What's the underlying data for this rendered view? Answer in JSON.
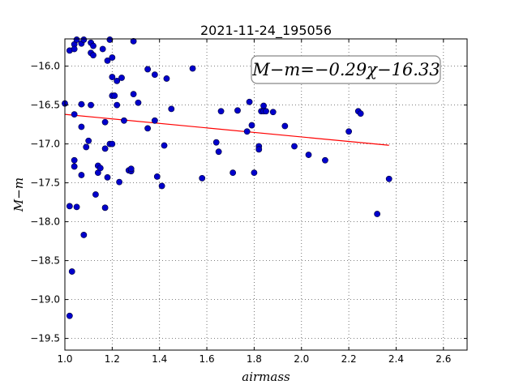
{
  "chart_data": {
    "type": "scatter",
    "title": "2021-11-24_195056",
    "xlabel": "airmass",
    "ylabel": "M−m",
    "annotation": "M−m=−0.29χ−16.33",
    "xlim": [
      1.0,
      2.7
    ],
    "ylim": [
      -19.65,
      -15.65
    ],
    "y_inverted": true,
    "grid": true,
    "x_ticks": [
      1.0,
      1.2,
      1.4,
      1.6,
      1.8,
      2.0,
      2.2,
      2.4,
      2.6
    ],
    "x_tick_labels": [
      "1.0",
      "1.2",
      "1.4",
      "1.6",
      "1.8",
      "2.0",
      "2.2",
      "2.4",
      "2.6"
    ],
    "y_ticks": [
      -16.0,
      -16.5,
      -17.0,
      -17.5,
      -18.0,
      -18.5,
      -19.0,
      -19.5
    ],
    "y_tick_labels": [
      "−16.0",
      "−16.5",
      "−17.0",
      "−17.5",
      "−18.0",
      "−18.5",
      "−19.0",
      "−19.5"
    ],
    "colors": {
      "points": "#0000cc",
      "fit": "#ff0000",
      "grid": "#555555"
    },
    "fit_line": {
      "slope": -0.29,
      "intercept": -16.33,
      "x_range": [
        1.0,
        2.37
      ]
    },
    "points": [
      [
        1.0,
        -16.48
      ],
      [
        1.02,
        -15.8
      ],
      [
        1.04,
        -15.72
      ],
      [
        1.04,
        -15.78
      ],
      [
        1.05,
        -15.66
      ],
      [
        1.07,
        -15.71
      ],
      [
        1.08,
        -15.66
      ],
      [
        1.11,
        -15.7
      ],
      [
        1.11,
        -15.83
      ],
      [
        1.12,
        -15.86
      ],
      [
        1.12,
        -15.74
      ],
      [
        1.16,
        -15.78
      ],
      [
        1.18,
        -15.93
      ],
      [
        1.2,
        -15.89
      ],
      [
        1.19,
        -15.66
      ],
      [
        1.29,
        -15.68
      ],
      [
        1.2,
        -16.14
      ],
      [
        1.22,
        -16.19
      ],
      [
        1.24,
        -16.15
      ],
      [
        1.2,
        -16.38
      ],
      [
        1.21,
        -16.38
      ],
      [
        1.22,
        -16.5
      ],
      [
        1.04,
        -16.62
      ],
      [
        1.07,
        -16.49
      ],
      [
        1.11,
        -16.5
      ],
      [
        1.17,
        -16.72
      ],
      [
        1.25,
        -16.7
      ],
      [
        1.29,
        -16.36
      ],
      [
        1.31,
        -16.47
      ],
      [
        1.35,
        -16.04
      ],
      [
        1.38,
        -16.11
      ],
      [
        1.43,
        -16.16
      ],
      [
        1.54,
        -16.03
      ],
      [
        1.45,
        -16.55
      ],
      [
        1.38,
        -16.7
      ],
      [
        1.35,
        -16.8
      ],
      [
        1.07,
        -16.78
      ],
      [
        1.09,
        -17.04
      ],
      [
        1.1,
        -16.96
      ],
      [
        1.17,
        -17.06
      ],
      [
        1.19,
        -17.0
      ],
      [
        1.2,
        -17.0
      ],
      [
        1.42,
        -17.02
      ],
      [
        1.04,
        -17.21
      ],
      [
        1.04,
        -17.29
      ],
      [
        1.07,
        -17.4
      ],
      [
        1.14,
        -17.28
      ],
      [
        1.14,
        -17.37
      ],
      [
        1.15,
        -17.31
      ],
      [
        1.18,
        -17.43
      ],
      [
        1.23,
        -17.49
      ],
      [
        1.27,
        -17.34
      ],
      [
        1.28,
        -17.35
      ],
      [
        1.28,
        -17.32
      ],
      [
        1.39,
        -17.42
      ],
      [
        1.41,
        -17.54
      ],
      [
        1.58,
        -17.44
      ],
      [
        1.13,
        -17.65
      ],
      [
        1.02,
        -17.8
      ],
      [
        1.05,
        -17.81
      ],
      [
        1.17,
        -17.82
      ],
      [
        1.08,
        -18.17
      ],
      [
        1.03,
        -18.64
      ],
      [
        1.02,
        -19.21
      ],
      [
        1.64,
        -16.98
      ],
      [
        1.65,
        -17.1
      ],
      [
        1.66,
        -16.58
      ],
      [
        1.71,
        -17.37
      ],
      [
        1.73,
        -16.57
      ],
      [
        1.77,
        -16.84
      ],
      [
        1.78,
        -16.46
      ],
      [
        1.79,
        -16.76
      ],
      [
        1.8,
        -17.37
      ],
      [
        1.82,
        -17.03
      ],
      [
        1.82,
        -17.07
      ],
      [
        1.83,
        -16.58
      ],
      [
        1.84,
        -16.51
      ],
      [
        1.84,
        -16.58
      ],
      [
        1.85,
        -16.58
      ],
      [
        1.88,
        -16.59
      ],
      [
        1.93,
        -16.77
      ],
      [
        1.97,
        -17.03
      ],
      [
        2.03,
        -17.14
      ],
      [
        2.1,
        -17.21
      ],
      [
        2.2,
        -16.84
      ],
      [
        2.24,
        -16.58
      ],
      [
        2.25,
        -16.61
      ],
      [
        2.32,
        -17.9
      ],
      [
        2.37,
        -17.45
      ]
    ]
  }
}
